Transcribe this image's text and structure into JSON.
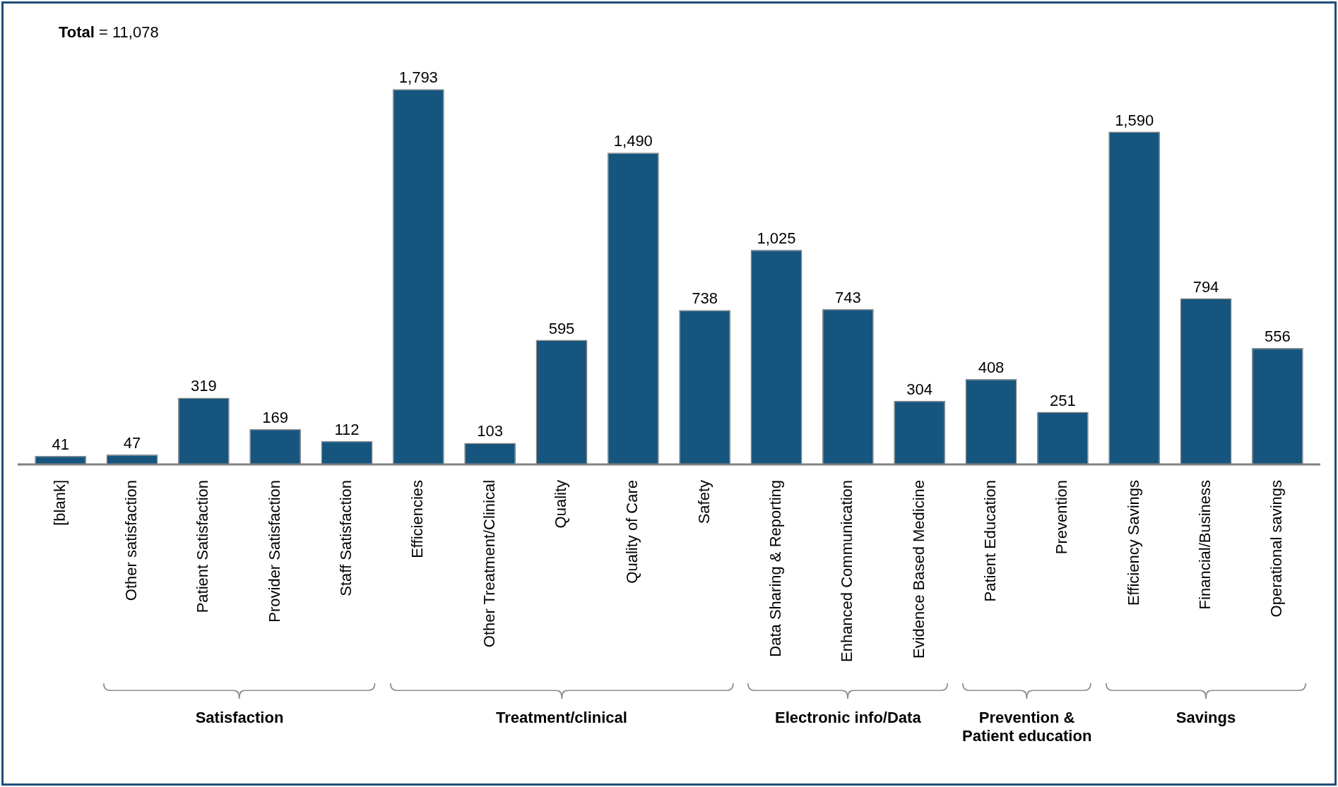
{
  "chart_data": {
    "type": "bar",
    "categories": [
      "[blank]",
      "Other satisfaction",
      "Patient Satisfaction",
      "Provider Satisfaction",
      "Staff Satisfaction",
      "Efficiencies",
      "Other Treatment/Clinical",
      "Quality",
      "Quality of Care",
      "Safety",
      "Data Sharing & Reporting",
      "Enhanced Communication",
      "Evidence Based Medicine",
      "Patient Education",
      "Prevention",
      "Efficiency Savings",
      "Financial/Business",
      "Operational savings"
    ],
    "values": [
      41,
      47,
      319,
      169,
      112,
      1793,
      103,
      595,
      1490,
      738,
      1025,
      743,
      304,
      408,
      251,
      1590,
      794,
      556
    ],
    "color": "#16557e",
    "value_labels": [
      "41",
      "47",
      "319",
      "169",
      "112",
      "1,793",
      "103",
      "595",
      "1,490",
      "738",
      "1,025",
      "743",
      "304",
      "408",
      "251",
      "1,590",
      "794",
      "556"
    ],
    "grid": false,
    "legend": false,
    "annotations": [
      "Total = 11,078",
      "Satisfaction",
      "Treatment/clinical",
      "Electronic info/Data",
      "Prevention & Patient education",
      "Savings"
    ]
  }
}
